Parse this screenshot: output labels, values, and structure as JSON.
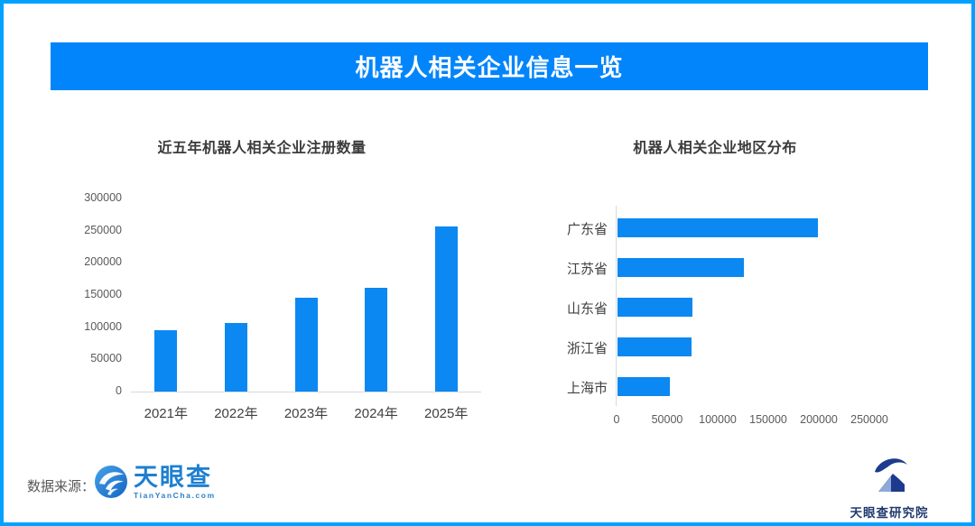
{
  "page": {
    "border_color": "#00a1ff",
    "background": "#ffffff"
  },
  "banner": {
    "title": "机器人相关企业信息一览",
    "bg_color": "#0285fb",
    "text_color": "#ffffff"
  },
  "chart_data": [
    {
      "type": "bar",
      "orientation": "vertical",
      "title": "近五年机器人相关企业注册数量",
      "categories": [
        "2021年",
        "2022年",
        "2023年",
        "2024年",
        "2025年"
      ],
      "values": [
        95000,
        107000,
        146000,
        161000,
        257000
      ],
      "ylabel": "",
      "xlabel": "",
      "ylim": [
        0,
        300000
      ],
      "ytick_step": 50000,
      "yticks": [
        "0",
        "50000",
        "100000",
        "150000",
        "200000",
        "250000",
        "300000"
      ],
      "bar_color": "#0b88f2",
      "grid": false,
      "legend": "none"
    },
    {
      "type": "bar",
      "orientation": "horizontal",
      "title": "机器人相关企业地区分布",
      "categories": [
        "广东省",
        "江苏省",
        "山东省",
        "浙江省",
        "上海市"
      ],
      "values": [
        198000,
        125000,
        74500,
        73000,
        51500
      ],
      "xlim": [
        0,
        280000
      ],
      "xtick_step": 50000,
      "xticks": [
        "0",
        "50000",
        "100000",
        "150000",
        "200000",
        "250000"
      ],
      "bar_color": "#0b88f2",
      "grid": false,
      "legend": "none"
    }
  ],
  "footer": {
    "source_label": "数据来源：",
    "source_logo": {
      "name": "天眼查",
      "subtext": "TianYanCha.com",
      "color": "#1e7fd1"
    },
    "institute_logo": {
      "name": "天眼查研究院",
      "color": "#22396f"
    }
  }
}
